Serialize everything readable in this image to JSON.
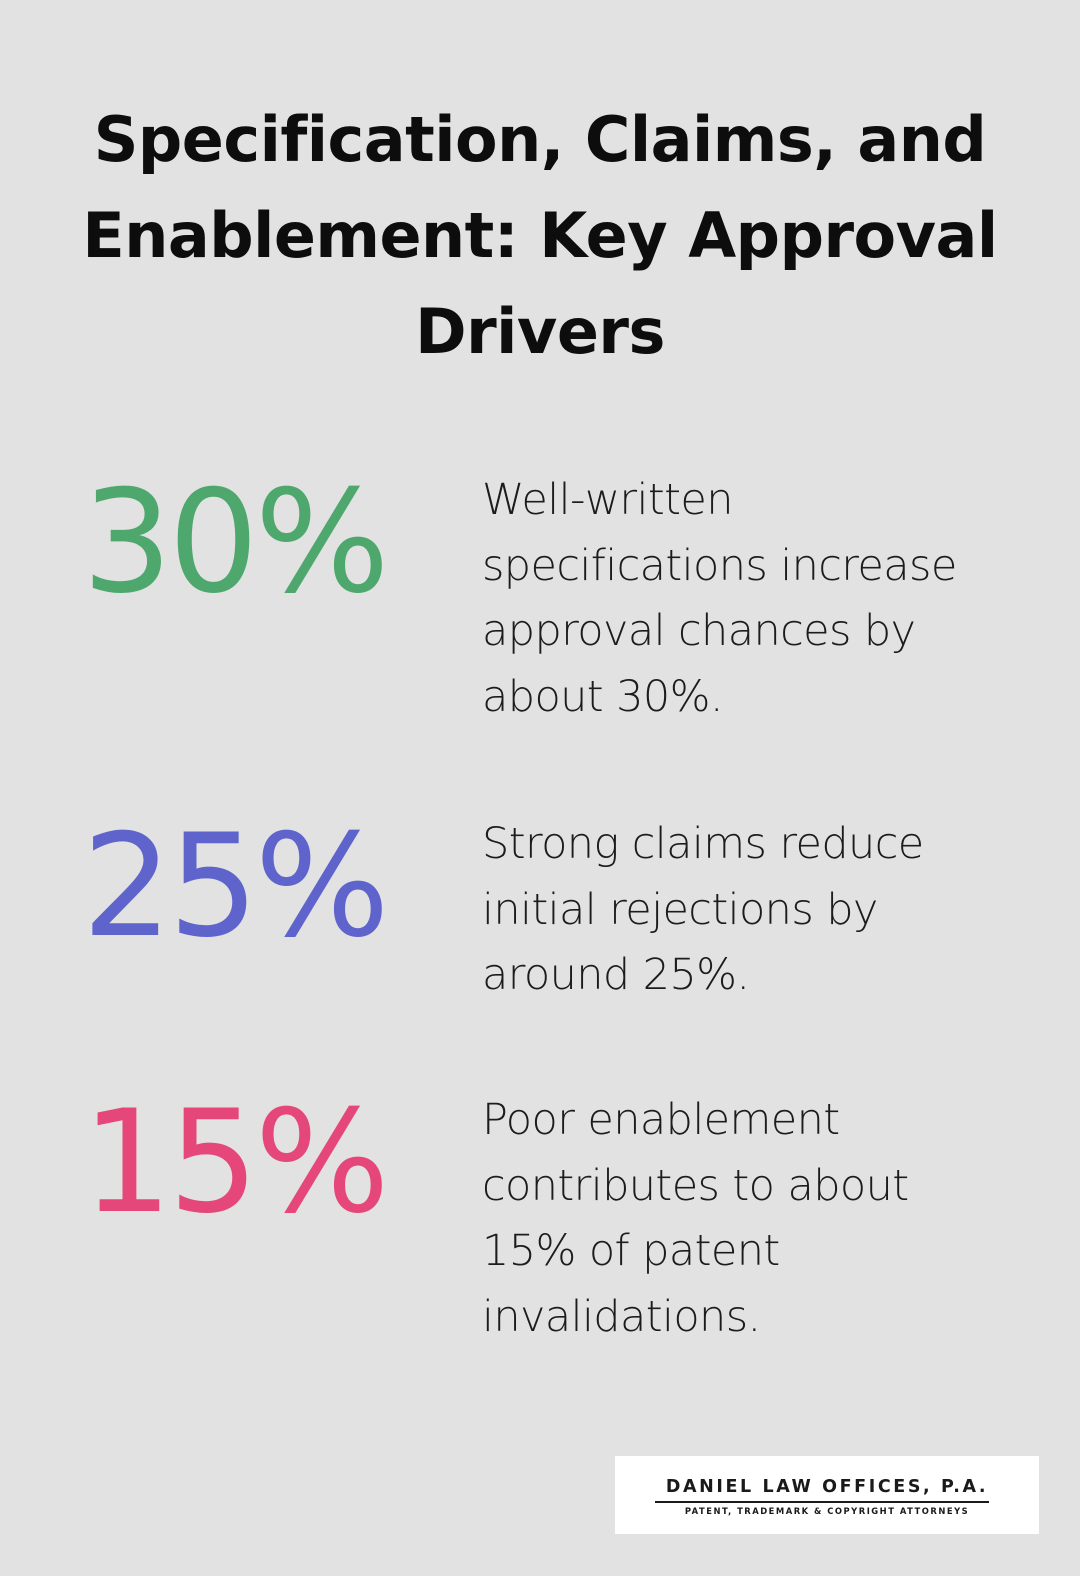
{
  "title": "Specification, Claims, and Enablement: Key Approval Drivers",
  "stats": [
    {
      "value": "30%",
      "color": "#4ea86d",
      "description": "Well-written specifications increase approval chances by about 30%."
    },
    {
      "value": "25%",
      "color": "#5f63cc",
      "description": "Strong claims reduce initial rejections by around 25%."
    },
    {
      "value": "15%",
      "color": "#e5477a",
      "description": "Poor enablement contributes to about 15% of patent invalidations."
    }
  ],
  "logo": {
    "name": "DANIEL LAW OFFICES, P.A.",
    "tagline": "PATENT, TRADEMARK & COPYRIGHT ATTORNEYS"
  }
}
